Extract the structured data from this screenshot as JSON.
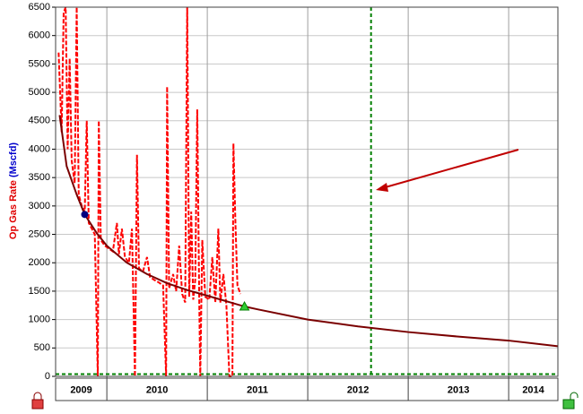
{
  "chart_data": {
    "type": "line",
    "ylabel": "Op Gas Rate",
    "ylabel_unit": "(Mscfd)",
    "ylim": [
      0,
      6500
    ],
    "yticks": [
      0,
      500,
      1000,
      1500,
      2000,
      2500,
      3000,
      3500,
      4000,
      4500,
      5000,
      5500,
      6000,
      6500
    ],
    "xlim": [
      2009.49,
      2014.49
    ],
    "xticks": [
      2010,
      2011,
      2012,
      2013,
      2014
    ],
    "x_bands": [
      2009,
      2010,
      2011,
      2012,
      2013,
      2014
    ],
    "grid": true,
    "series": [
      {
        "color": "#ff0000",
        "style": "dashed",
        "x": [
          2009.52,
          2009.55,
          2009.57,
          2009.59,
          2009.61,
          2009.63,
          2009.65,
          2009.68,
          2009.7,
          2009.72,
          2009.75,
          2009.78,
          2009.8,
          2009.82,
          2009.85,
          2009.88,
          2009.91,
          2009.92,
          2009.94,
          2009.98,
          2010.02,
          2010.06,
          2010.1,
          2010.12,
          2010.15,
          2010.18,
          2010.22,
          2010.25,
          2010.28,
          2010.3,
          2010.32,
          2010.36,
          2010.4,
          2010.43,
          2010.47,
          2010.52,
          2010.56,
          2010.59,
          2010.6,
          2010.62,
          2010.66,
          2010.69,
          2010.72,
          2010.75,
          2010.78,
          2010.8,
          2010.82,
          2010.84,
          2010.86,
          2010.88,
          2010.9,
          2010.92,
          2010.93,
          2010.95,
          2010.98,
          2011.02,
          2011.05,
          2011.08,
          2011.11,
          2011.13,
          2011.16,
          2011.19,
          2011.22,
          2011.25,
          2011.26,
          2011.28,
          2011.3,
          2011.33
        ],
        "values": [
          5700,
          4300,
          6400,
          6500,
          4000,
          5600,
          3800,
          3400,
          6500,
          3200,
          3000,
          2900,
          4500,
          2700,
          2600,
          2500,
          0,
          4500,
          2400,
          2300,
          2250,
          2200,
          2700,
          2150,
          2600,
          2100,
          2000,
          2600,
          0,
          3900,
          1900,
          1850,
          2100,
          1750,
          1700,
          1650,
          1600,
          0,
          5100,
          1550,
          1800,
          1500,
          2300,
          1450,
          1300,
          6500,
          1400,
          2900,
          1350,
          1700,
          4700,
          1300,
          0,
          2400,
          1400,
          1350,
          2100,
          1300,
          2600,
          1300,
          1800,
          1250,
          0,
          0,
          4100,
          2700,
          1600,
          1450
        ]
      },
      {
        "color": "#7a0000",
        "style": "solid",
        "x": [
          2009.53,
          2009.6,
          2009.7,
          2009.78,
          2009.9,
          2010.0,
          2010.2,
          2010.4,
          2010.6,
          2010.8,
          2011.0,
          2011.37,
          2011.5,
          2012.0,
          2012.5,
          2013.0,
          2013.5,
          2014.0,
          2014.49
        ],
        "values": [
          4600,
          3700,
          3200,
          2850,
          2520,
          2300,
          2000,
          1800,
          1640,
          1520,
          1420,
          1230,
          1180,
          1000,
          880,
          780,
          700,
          630,
          530
        ]
      }
    ],
    "start_point": {
      "x": 2009.78,
      "y": 2850,
      "color": "#000080"
    },
    "end_point": {
      "x": 2011.37,
      "y": 1230,
      "color": "#33cc33"
    },
    "vertical_line_x": 2012.63,
    "threshold": 40,
    "marker_line_color": "#008000"
  }
}
